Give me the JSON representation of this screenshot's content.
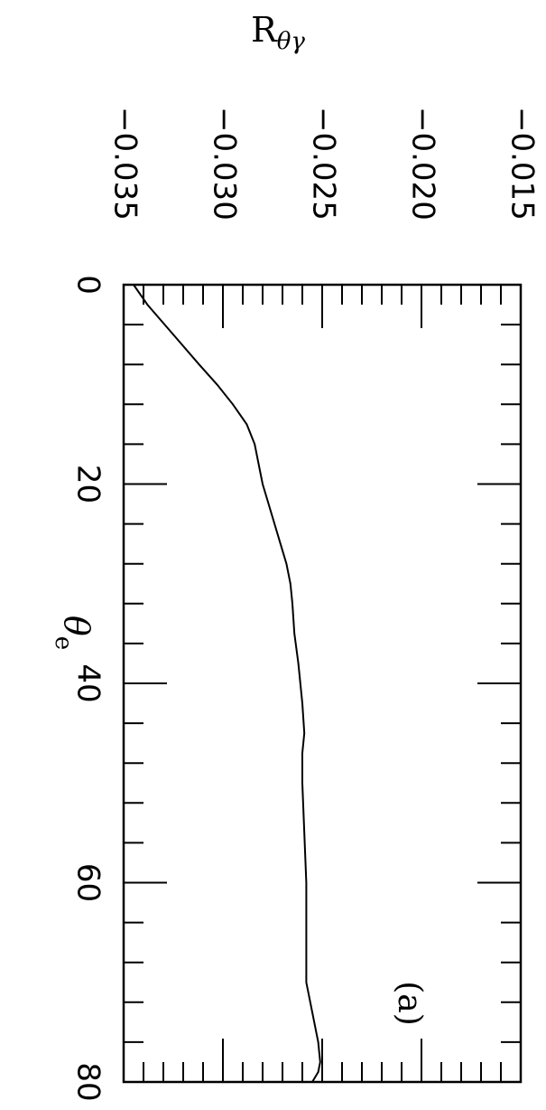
{
  "chart_data": {
    "type": "line",
    "title": "",
    "xlabel": "θe",
    "ylabel": "Rθγ",
    "panel_label": "(a)",
    "xlim": [
      0,
      80
    ],
    "ylim": [
      -0.035,
      -0.015
    ],
    "x_major_ticks": [
      0,
      20,
      40,
      60,
      80
    ],
    "x_minor_step": 4,
    "y_major_ticks": [
      -0.035,
      -0.03,
      -0.025,
      -0.02,
      -0.015
    ],
    "y_minor_step": 0.001,
    "x_tick_labels": [
      "0",
      "20",
      "40",
      "60",
      "80"
    ],
    "y_tick_labels": [
      "−0.035",
      "−0.030",
      "−0.025",
      "−0.020",
      "−0.015"
    ],
    "grid": false,
    "series": [
      {
        "x": [
          0,
          2,
          5,
          8,
          10,
          12,
          14,
          16,
          18,
          20,
          22,
          24,
          26,
          28,
          30,
          32,
          35,
          38,
          40,
          42,
          45,
          47,
          50,
          55,
          60,
          65,
          70,
          72,
          74,
          76,
          78,
          79,
          80
        ],
        "y": [
          -0.0345,
          -0.0338,
          -0.0325,
          -0.0312,
          -0.0303,
          -0.0295,
          -0.0288,
          -0.0284,
          -0.0282,
          -0.028,
          -0.0277,
          -0.0274,
          -0.0271,
          -0.0268,
          -0.0266,
          -0.0265,
          -0.0264,
          -0.0262,
          -0.0261,
          -0.026,
          -0.0259,
          -0.026,
          -0.026,
          -0.0259,
          -0.0258,
          -0.0258,
          -0.0258,
          -0.0256,
          -0.0254,
          -0.0252,
          -0.0251,
          -0.0252,
          -0.0255
        ]
      }
    ]
  }
}
